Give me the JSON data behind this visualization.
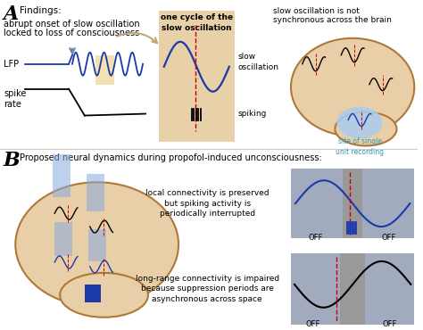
{
  "bg_color": "#ffffff",
  "tan_box": "#e8d0a8",
  "brain_fill": "#e8cfa8",
  "brain_edge": "#b07838",
  "blue_wave": "#1a3aaa",
  "red_dashed": "#cc0000",
  "blue_light": "#88aadd",
  "blue_dark": "#1a3aaa",
  "cyan_text": "#3399bb",
  "gray_box": "#999999",
  "gray_arrow": "#778899",
  "title_A": "A",
  "title_B": "B",
  "findings": "Findings:",
  "text1a": "abrupt onset of slow oscillation",
  "text1b": "locked to loss of consciousness",
  "text_cycle": "one cycle of the\nslow oscillation",
  "text_right_top": "slow oscillation is not",
  "text_right_bot": "synchronous across the brain",
  "text_slow_osc": "slow\noscillation",
  "text_spiking": "spiking",
  "text_LFP": "LFP",
  "text_spike": "spike\nrate",
  "text_proposed": "Proposed neural dynamics during propofol-induced unconsciousness:",
  "text_local": "local connectivity is preserved\nbut spiking activity is\nperiodically interrupted",
  "text_longrange": "long-range connectivity is impaired\nbecause suppression periods are\nasynchronous across space",
  "text_OFF": "OFF",
  "text_site": "site of single\nunit recording"
}
